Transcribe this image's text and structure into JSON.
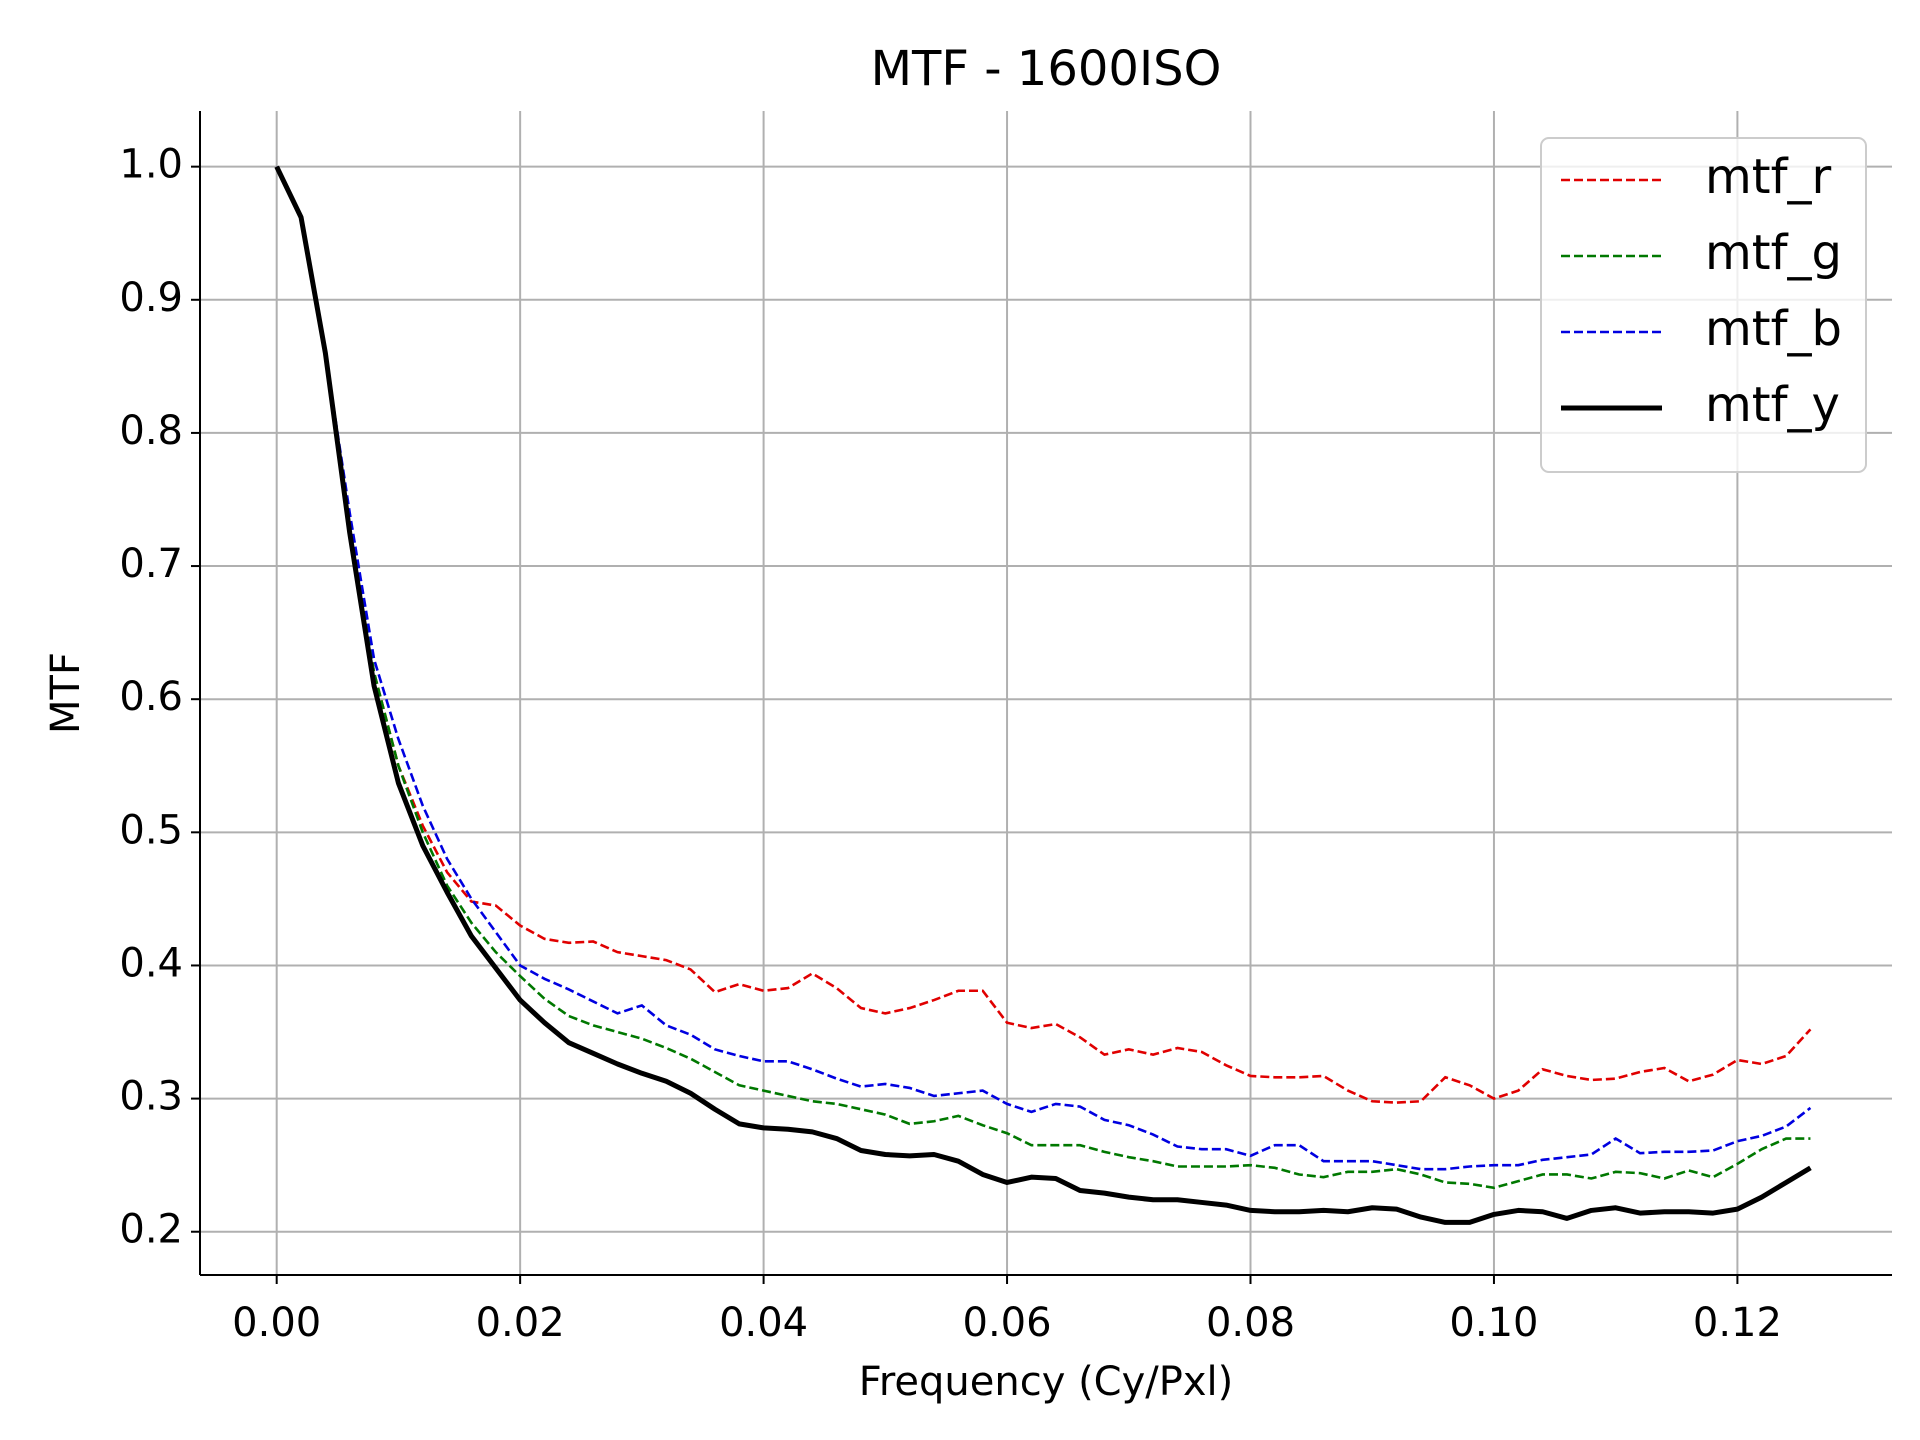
{
  "chart_data": {
    "type": "line",
    "title": "MTF - 1600ISO",
    "x_label": "Frequency (Cy/Pxl)",
    "y_label": "MTF",
    "x": [
      0,
      0.002,
      0.004,
      0.006,
      0.008,
      0.01,
      0.012,
      0.014,
      0.016,
      0.018,
      0.02,
      0.022,
      0.024,
      0.026,
      0.028,
      0.03,
      0.032,
      0.034,
      0.036,
      0.038,
      0.04,
      0.042,
      0.044,
      0.046,
      0.048,
      0.05,
      0.052,
      0.054,
      0.056,
      0.058,
      0.06,
      0.062,
      0.064,
      0.066,
      0.068,
      0.07,
      0.072,
      0.074,
      0.076,
      0.078,
      0.08,
      0.082,
      0.084,
      0.086,
      0.088,
      0.09,
      0.092,
      0.094,
      0.096,
      0.098,
      0.1,
      0.102,
      0.104,
      0.106,
      0.108,
      0.11,
      0.112,
      0.114,
      0.116,
      0.118,
      0.12,
      0.122,
      0.124,
      0.126
    ],
    "series": [
      {
        "name": "mtf_r",
        "color": "#e00000",
        "dashed": true,
        "values": [
          1.0,
          0.962,
          0.86,
          0.73,
          0.62,
          0.55,
          0.505,
          0.47,
          0.448,
          0.445,
          0.43,
          0.42,
          0.417,
          0.418,
          0.41,
          0.407,
          0.404,
          0.397,
          0.38,
          0.386,
          0.381,
          0.383,
          0.394,
          0.383,
          0.368,
          0.364,
          0.368,
          0.374,
          0.381,
          0.381,
          0.357,
          0.353,
          0.356,
          0.346,
          0.333,
          0.337,
          0.333,
          0.338,
          0.335,
          0.325,
          0.317,
          0.316,
          0.316,
          0.317,
          0.306,
          0.298,
          0.297,
          0.298,
          0.316,
          0.31,
          0.3,
          0.306,
          0.322,
          0.317,
          0.314,
          0.315,
          0.32,
          0.323,
          0.313,
          0.318,
          0.329,
          0.326,
          0.332,
          0.352
        ]
      },
      {
        "name": "mtf_g",
        "color": "#007800",
        "dashed": true,
        "values": [
          1.0,
          0.962,
          0.86,
          0.73,
          0.62,
          0.55,
          0.5,
          0.46,
          0.432,
          0.41,
          0.392,
          0.375,
          0.362,
          0.355,
          0.35,
          0.345,
          0.338,
          0.33,
          0.32,
          0.31,
          0.306,
          0.302,
          0.298,
          0.296,
          0.292,
          0.288,
          0.281,
          0.283,
          0.287,
          0.28,
          0.274,
          0.265,
          0.265,
          0.265,
          0.26,
          0.256,
          0.253,
          0.249,
          0.249,
          0.249,
          0.25,
          0.248,
          0.243,
          0.241,
          0.245,
          0.245,
          0.247,
          0.243,
          0.237,
          0.236,
          0.233,
          0.238,
          0.243,
          0.243,
          0.24,
          0.245,
          0.244,
          0.24,
          0.246,
          0.241,
          0.251,
          0.262,
          0.27,
          0.27
        ]
      },
      {
        "name": "mtf_b",
        "color": "#0000e0",
        "dashed": true,
        "values": [
          1.0,
          0.962,
          0.86,
          0.74,
          0.63,
          0.57,
          0.52,
          0.48,
          0.45,
          0.425,
          0.4,
          0.39,
          0.382,
          0.373,
          0.364,
          0.37,
          0.355,
          0.348,
          0.337,
          0.332,
          0.328,
          0.328,
          0.322,
          0.315,
          0.309,
          0.311,
          0.308,
          0.302,
          0.304,
          0.306,
          0.296,
          0.29,
          0.296,
          0.294,
          0.284,
          0.28,
          0.273,
          0.264,
          0.262,
          0.262,
          0.257,
          0.265,
          0.265,
          0.253,
          0.253,
          0.253,
          0.25,
          0.247,
          0.247,
          0.249,
          0.25,
          0.25,
          0.254,
          0.256,
          0.258,
          0.27,
          0.259,
          0.26,
          0.26,
          0.261,
          0.268,
          0.272,
          0.279,
          0.293
        ]
      },
      {
        "name": "mtf_y",
        "color": "#000000",
        "dashed": false,
        "values": [
          1.0,
          0.962,
          0.86,
          0.725,
          0.61,
          0.537,
          0.49,
          0.455,
          0.422,
          0.398,
          0.374,
          0.357,
          0.342,
          0.334,
          0.326,
          0.319,
          0.313,
          0.304,
          0.292,
          0.281,
          0.278,
          0.277,
          0.275,
          0.27,
          0.261,
          0.258,
          0.257,
          0.258,
          0.253,
          0.243,
          0.237,
          0.241,
          0.24,
          0.231,
          0.229,
          0.226,
          0.224,
          0.224,
          0.222,
          0.22,
          0.216,
          0.215,
          0.215,
          0.216,
          0.215,
          0.218,
          0.217,
          0.211,
          0.207,
          0.207,
          0.213,
          0.216,
          0.215,
          0.21,
          0.216,
          0.218,
          0.214,
          0.215,
          0.215,
          0.214,
          0.217,
          0.226,
          0.237,
          0.248
        ]
      }
    ],
    "xlim": [
      -0.0063,
      0.1327
    ],
    "ylim": [
      0.1675,
      1.0418
    ],
    "xticks": [
      {
        "value": 0,
        "label": "0.00"
      },
      0.02,
      0.04,
      0.06,
      0.08,
      {
        "value": 0.1,
        "label": "0.10"
      },
      0.12
    ],
    "yticks": [
      0.2,
      0.3,
      0.4,
      0.5,
      0.6,
      0.7,
      0.8,
      0.9,
      {
        "value": 1,
        "label": "1.0"
      }
    ],
    "grid": true,
    "legend": "upper right"
  }
}
